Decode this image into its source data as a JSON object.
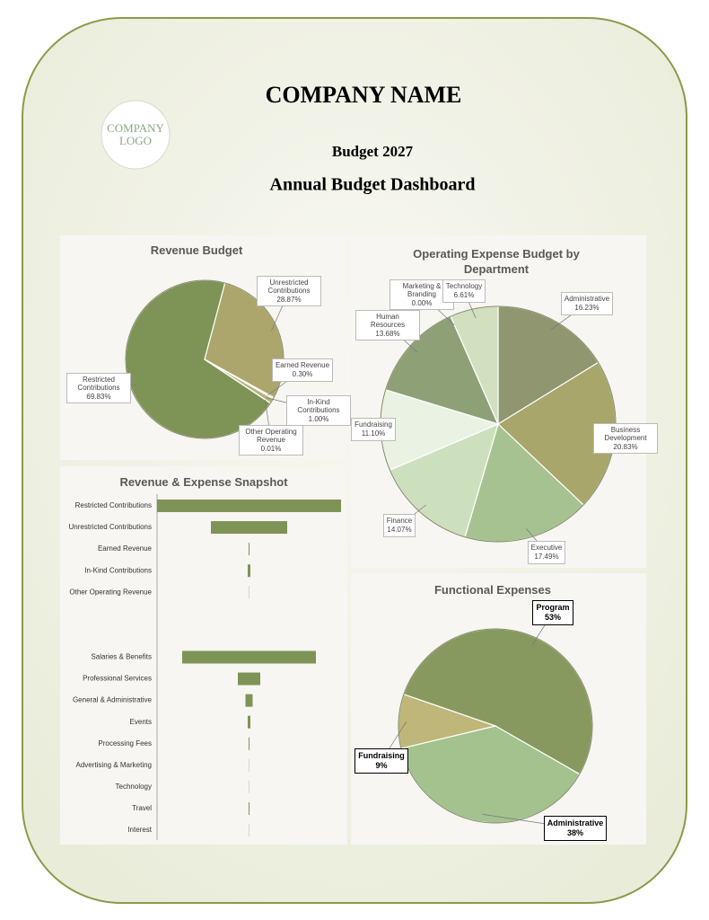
{
  "header": {
    "company_name": "COMPANY NAME",
    "logo": [
      "COMPANY",
      "LOGO"
    ],
    "subtitle": "Budget 2027",
    "title": "Annual Budget Dashboard"
  },
  "chart_data": [
    {
      "type": "pie",
      "title": "Revenue Budget",
      "categories": [
        "Restricted Contributions",
        "Unrestricted Contributions",
        "Earned Revenue",
        "In-Kind Contributions",
        "Other Operating Revenue"
      ],
      "values": [
        69.83,
        28.87,
        0.3,
        1.0,
        0.01
      ],
      "value_labels": [
        "69.83%",
        "28.87%",
        "0.30%",
        "1.00%",
        "0.01%"
      ],
      "colors": [
        "#7d9456",
        "#aca56c",
        "#c5c28f",
        "#b8b27a",
        "#d9d6a8"
      ]
    },
    {
      "type": "pie",
      "title": "Operating Expense Budget by Department",
      "categories": [
        "Administrative",
        "Business Development",
        "Executive",
        "Finance",
        "Fundraising",
        "Human Resources",
        "Marketing & Branding",
        "Technology"
      ],
      "values": [
        16.23,
        20.83,
        17.49,
        14.07,
        11.1,
        13.68,
        0.0,
        6.61
      ],
      "value_labels": [
        "16.23%",
        "20.83%",
        "17.49%",
        "14.07%",
        "11.10%",
        "13.68%",
        "0.00%",
        "6.61%"
      ],
      "colors": [
        "#8f9670",
        "#a9a66b",
        "#a6c291",
        "#cde0bd",
        "#eaf2e4",
        "#8ea076",
        "#b9c9a0",
        "#d3e0c0"
      ]
    },
    {
      "type": "bar",
      "title": "Revenue & Expense Snapshot",
      "orientation": "horizontal",
      "color": "#7d9456",
      "categories": [
        "Restricted Contributions",
        "Unrestricted Contributions",
        "Earned Revenue",
        "In-Kind Contributions",
        "Other Operating Revenue",
        null,
        null,
        "Salaries & Benefits",
        "Professional Services",
        "General & Administrative",
        "Events",
        "Processing Fees",
        "Advertising & Marketing",
        "Technology",
        "Travel",
        "Interest"
      ],
      "values": [
        205,
        85,
        1,
        3,
        0.5,
        null,
        null,
        149,
        25,
        8,
        3,
        1,
        0,
        0.5,
        1,
        0.5
      ]
    },
    {
      "type": "pie",
      "title": "Functional Expenses",
      "categories": [
        "Program",
        "Administrative",
        "Fundraising"
      ],
      "values": [
        53,
        38,
        9
      ],
      "value_labels": [
        "53%",
        "38%",
        "9%"
      ],
      "colors": [
        "#87995e",
        "#a3c28e",
        "#bfb67a"
      ]
    }
  ]
}
